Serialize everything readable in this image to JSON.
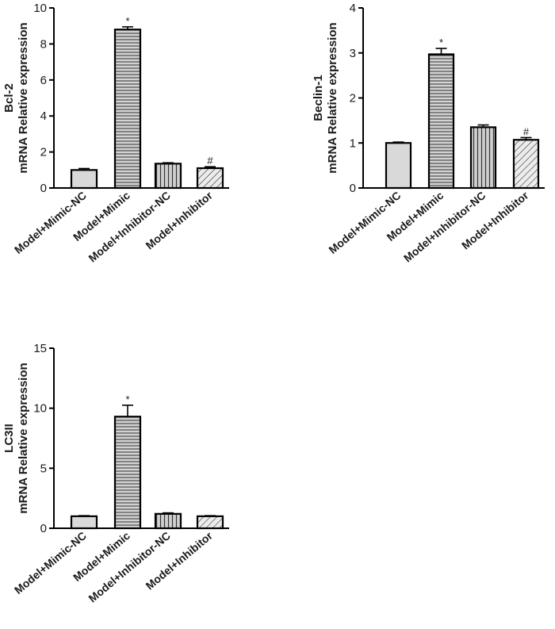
{
  "colors": {
    "axis": "#000000",
    "bar_solid": "#d9d9d9",
    "bar_hstripe_bg": "#d2d2d2",
    "bar_vstripe_bg": "#cfcfcf",
    "bar_diag_bg": "#ececec",
    "stripe": "#333333",
    "outline": "#000000"
  },
  "chart_data": [
    {
      "type": "bar",
      "categories": [
        "Model+Mimic-NC",
        "Model+Mimic",
        "Model+Inhibitor-NC",
        "Model+Inhibitor"
      ],
      "values": [
        1.0,
        8.8,
        1.35,
        1.1
      ],
      "errors": [
        0.08,
        0.15,
        0.05,
        0.08
      ],
      "annotations": [
        "",
        "*",
        "",
        "#"
      ],
      "patterns": [
        "solid",
        "hstripes",
        "vstripes",
        "diag"
      ],
      "ylabel_line1": "Bcl-2",
      "ylabel_line2": "mRNA Relative expression",
      "ylim": [
        0,
        10
      ],
      "yticks": [
        0,
        2,
        4,
        6,
        8,
        10
      ],
      "ytick_labels": [
        "0",
        "2",
        "4",
        "6",
        "8",
        "10"
      ],
      "grid": false,
      "legend": "none"
    },
    {
      "type": "bar",
      "categories": [
        "Model+Mimic-NC",
        "Model+Mimic",
        "Model+Inhibitor-NC",
        "Model+Inhibitor"
      ],
      "values": [
        1.0,
        2.97,
        1.35,
        1.07
      ],
      "errors": [
        0.02,
        0.13,
        0.05,
        0.05
      ],
      "annotations": [
        "",
        "*",
        "",
        "#"
      ],
      "patterns": [
        "solid",
        "hstripes",
        "vstripes",
        "diag"
      ],
      "ylabel_line1": "Beclin-1",
      "ylabel_line2": "mRNA Relative expression",
      "ylim": [
        0,
        4
      ],
      "yticks": [
        0,
        1,
        2,
        3,
        4
      ],
      "ytick_labels": [
        "0",
        "1",
        "2",
        "3",
        "4"
      ],
      "grid": false,
      "legend": "none"
    },
    {
      "type": "bar",
      "categories": [
        "Model+Mimic-NC",
        "Model+Mimic",
        "Model+Inhibitor-NC",
        "Model+Inhibitor"
      ],
      "values": [
        1.0,
        9.3,
        1.2,
        1.0
      ],
      "errors": [
        0.05,
        0.95,
        0.08,
        0.05
      ],
      "annotations": [
        "",
        "*",
        "",
        ""
      ],
      "patterns": [
        "solid",
        "hstripes",
        "vstripes",
        "diag"
      ],
      "ylabel_line1": "LC3II",
      "ylabel_line2": "mRNA Relative expression",
      "ylim": [
        0,
        15
      ],
      "yticks": [
        0,
        5,
        10,
        15
      ],
      "ytick_labels": [
        "0",
        "5",
        "10",
        "15"
      ],
      "grid": false,
      "legend": "none"
    }
  ]
}
